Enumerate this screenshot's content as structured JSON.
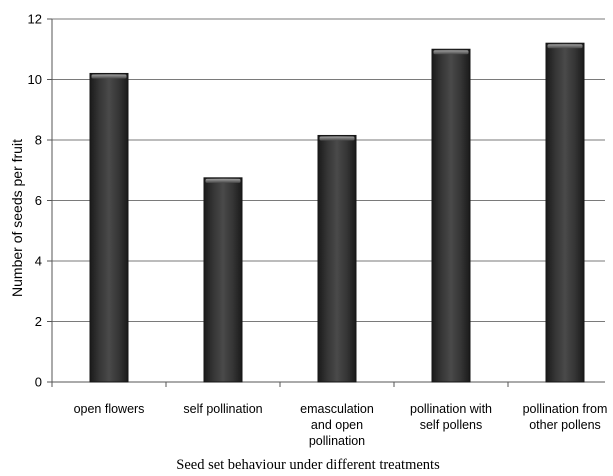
{
  "chart_data": {
    "type": "bar",
    "title": "",
    "xlabel": "Seed set behaviour under different treatments",
    "ylabel": "Number of seeds per fruit",
    "ylim": [
      0,
      12
    ],
    "yticks": [
      0,
      2,
      4,
      6,
      8,
      10,
      12
    ],
    "grid": true,
    "legend": "none",
    "categories": [
      [
        "open flowers"
      ],
      [
        "self pollination"
      ],
      [
        "emasculation",
        "and open",
        "pollination"
      ],
      [
        "pollination with",
        "self pollens"
      ],
      [
        "pollination from",
        "other pollens"
      ]
    ],
    "values": [
      10.2,
      6.75,
      8.15,
      11.0,
      11.2
    ],
    "colors": {
      "bar": "#3a3a3a",
      "bar_highlight": "#8a8a8a",
      "grid": "#7a7a7a"
    }
  }
}
